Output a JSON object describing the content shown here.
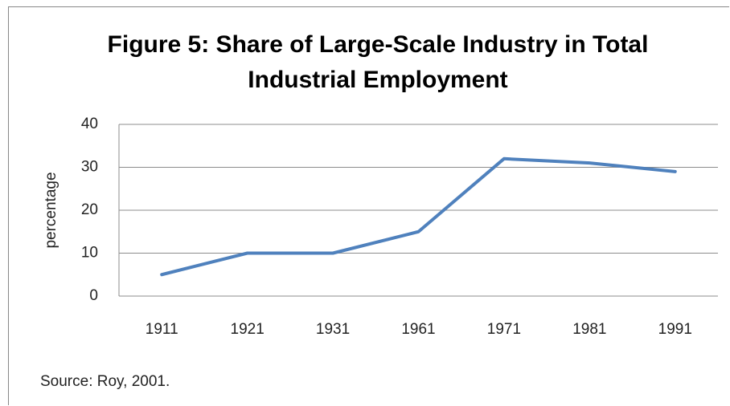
{
  "chart_data": {
    "type": "line",
    "title": "Figure 5: Share of Large-Scale Industry in Total Industrial Employment",
    "y_label": "percentage",
    "categories": [
      "1911",
      "1921",
      "1931",
      "1961",
      "1971",
      "1981",
      "1991"
    ],
    "values": [
      5,
      10,
      10,
      15,
      32,
      31,
      29
    ],
    "color": "#4f81bd",
    "ylim": [
      0,
      40
    ],
    "yticks": [
      0,
      10,
      20,
      30,
      40
    ],
    "grid": true,
    "source": "Source: Roy, 2001."
  }
}
